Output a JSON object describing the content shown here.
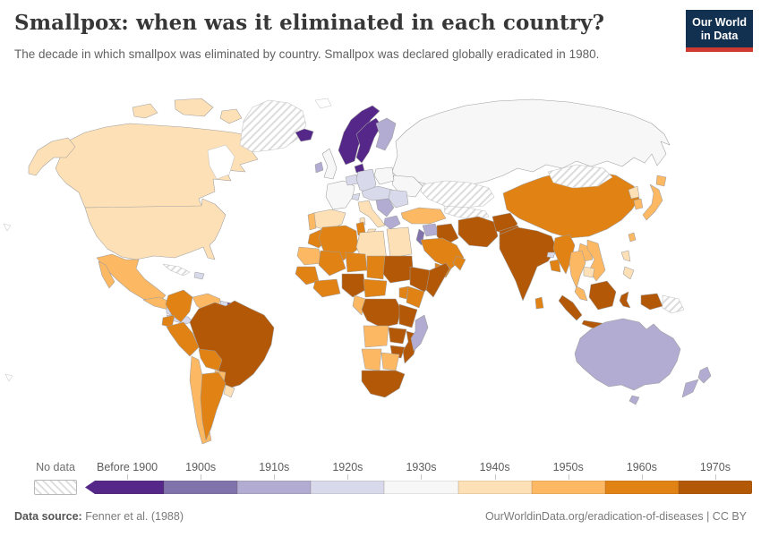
{
  "header": {
    "title": "Smallpox: when was it eliminated in each country?",
    "subtitle": "The decade in which smallpox was eliminated by country. Smallpox was declared globally eradicated in 1980."
  },
  "logo": {
    "line1": "Our World",
    "line2": "in Data",
    "bg_color": "#12304f",
    "accent_color": "#cf3b31"
  },
  "footer": {
    "datasource_label": "Data source:",
    "datasource_value": "Fenner et al. (1988)",
    "link": "OurWorldinData.org/eradication-of-diseases",
    "separator": " | ",
    "license": "CC BY"
  },
  "chart_data": {
    "type": "choropleth_map",
    "title": "Smallpox: when was it eliminated in each country?",
    "unit": "decade of smallpox elimination",
    "legend": {
      "no_data_label": "No data",
      "no_data_hatch_color": "#dcdcdc",
      "bins": [
        {
          "id": "before_1900",
          "label": "Before 1900",
          "color": "#542788"
        },
        {
          "id": "1900s",
          "label": "1900s",
          "color": "#8073ac"
        },
        {
          "id": "1910s",
          "label": "1910s",
          "color": "#b2abd2"
        },
        {
          "id": "1920s",
          "label": "1920s",
          "color": "#d8daeb"
        },
        {
          "id": "1930s",
          "label": "1930s",
          "color": "#f7f7f7"
        },
        {
          "id": "1940s",
          "label": "1940s",
          "color": "#fee0b6"
        },
        {
          "id": "1950s",
          "label": "1950s",
          "color": "#fdb863"
        },
        {
          "id": "1960s",
          "label": "1960s",
          "color": "#e08214"
        },
        {
          "id": "1970s",
          "label": "1970s",
          "color": "#b35806"
        }
      ]
    },
    "countries": {
      "canada": "1940s",
      "usa": "1940s",
      "greenland": "no_data",
      "mexico": "1950s",
      "guatemala-honduras": "1950s",
      "nicaragua": "1920s",
      "costa-rica-panama": "1920s",
      "cuba": "no_data",
      "hispaniola": "1920s",
      "colombia": "1960s",
      "venezuela": "1950s",
      "guyana": "1920s",
      "suriname": "before_1900",
      "french-guiana": "1900s",
      "ecuador": "1960s",
      "peru": "1960s",
      "brazil": "1970s",
      "bolivia": "1960s",
      "paraguay": "1950s",
      "chile": "1950s",
      "argentina": "1960s",
      "uruguay": "1940s",
      "iceland": "before_1900",
      "norway": "before_1900",
      "sweden": "before_1900",
      "denmark": "before_1900",
      "finland": "1910s",
      "uk": "1930s",
      "ireland": "1910s",
      "france": "1930s",
      "benelux": "1920s",
      "germany": "1920s",
      "poland": "1930s",
      "central-europe": "1920s",
      "switzerland": "1920s",
      "italy": "1940s",
      "spain": "1940s",
      "portugal": "1950s",
      "balkans": "1910s",
      "greece": "1910s",
      "romania-bulgaria": "1920s",
      "russia": "1930s",
      "ukraine": "1930s",
      "kazakhstan": "no_data",
      "central-asia": "no_data",
      "turkey": "1950s",
      "syria": "1910s",
      "levant": "1900s",
      "iraq": "1970s",
      "iran": "1970s",
      "afghanistan": "1970s",
      "pakistan": "1970s",
      "saudi-arabia": "1960s",
      "yemen": "1960s",
      "oman": "1960s",
      "morocco": "1960s",
      "algeria": "1960s",
      "tunisia": "1960s",
      "libya": "1940s",
      "egypt": "1940s",
      "mauritania": "1950s",
      "mali": "1960s",
      "niger": "1960s",
      "chad": "1960s",
      "sudan": "1970s",
      "senegal-guinea": "1960s",
      "ivory-coast-ghana": "1960s",
      "nigeria": "1970s",
      "cameroon-car": "1960s",
      "ethiopia": "1970s",
      "somalia": "1970s",
      "kenya": "1960s",
      "uganda": "1960s",
      "dr-congo": "1970s",
      "congo-gabon": "1950s",
      "tanzania": "1970s",
      "angola": "1950s",
      "zambia": "1970s",
      "mozambique": "1970s",
      "zimbabwe": "1970s",
      "namibia": "1950s",
      "botswana": "1950s",
      "south-africa": "1970s",
      "madagascar": "1910s",
      "india": "1970s",
      "bhutan": "1920s",
      "bangladesh": "1960s",
      "sri-lanka": "1960s",
      "china": "1960s",
      "mongolia": "no_data",
      "taiwan": "1950s",
      "north-korea": "1940s",
      "south-korea": "1950s",
      "japan": "1950s",
      "myanmar": "1960s",
      "thailand": "1950s",
      "laos": "1950s",
      "vietnam": "1950s",
      "cambodia": "1940s",
      "malaysia": "1950s",
      "philippines": "1940s",
      "indonesia": "1970s",
      "papua-new-guinea": "no_data",
      "australia": "1910s",
      "new-zealand": "1910s"
    }
  }
}
